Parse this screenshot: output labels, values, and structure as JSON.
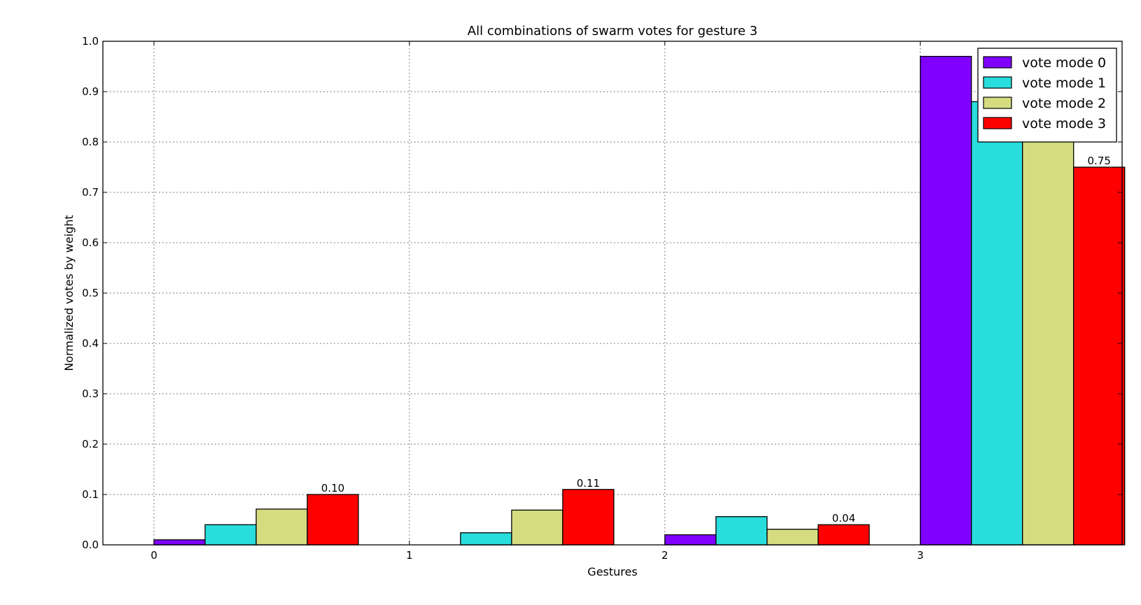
{
  "chart_data": {
    "type": "bar",
    "title": "All combinations of swarm votes for gesture 3",
    "xlabel": "Gestures",
    "ylabel": "Normalized votes by weight",
    "categories": [
      "0",
      "1",
      "2",
      "3"
    ],
    "ylim": [
      0,
      1.0
    ],
    "yticks": [
      "0.0",
      "0.1",
      "0.2",
      "0.3",
      "0.4",
      "0.5",
      "0.6",
      "0.7",
      "0.8",
      "0.9",
      "1.0"
    ],
    "grid": true,
    "legend_position": "top-right",
    "series": [
      {
        "name": "vote mode 0",
        "color": "#7f00ff",
        "values": [
          0.01,
          0.0,
          0.02,
          0.97
        ]
      },
      {
        "name": "vote mode 1",
        "color": "#2adddd",
        "values": [
          0.04,
          0.024,
          0.056,
          0.88
        ]
      },
      {
        "name": "vote mode 2",
        "color": "#d4dc7f",
        "values": [
          0.071,
          0.069,
          0.031,
          0.83
        ]
      },
      {
        "name": "vote mode 3",
        "color": "#ff0000",
        "values": [
          0.1,
          0.11,
          0.04,
          0.75
        ]
      }
    ],
    "annotations": [
      {
        "category": "0",
        "series": "vote mode 3",
        "text": "0.10"
      },
      {
        "category": "1",
        "series": "vote mode 3",
        "text": "0.11"
      },
      {
        "category": "2",
        "series": "vote mode 3",
        "text": "0.04"
      },
      {
        "category": "3",
        "series": "vote mode 3",
        "text": "0.75"
      }
    ]
  }
}
